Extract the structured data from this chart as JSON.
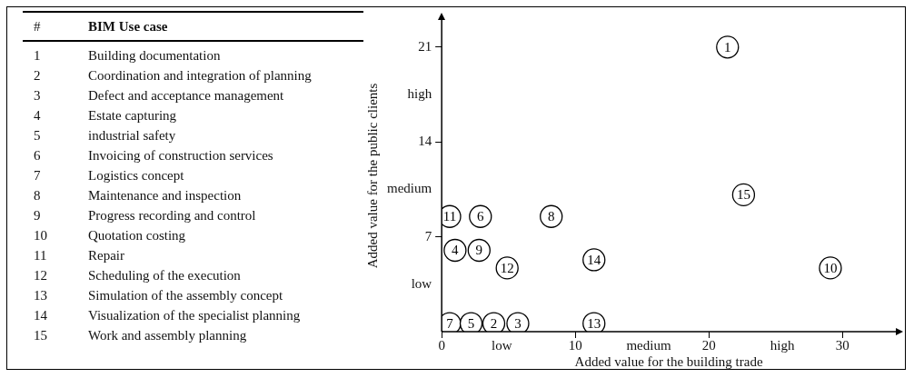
{
  "chart_data": {
    "type": "scatter",
    "xlabel": "Added value for the building trade",
    "ylabel": "Added value for the public clients",
    "series": [
      {
        "name": "1",
        "color": "#000000",
        "x": [
          21.4
        ],
        "values": [
          21
        ]
      },
      {
        "name": "2",
        "color": "#000000",
        "x": [
          3.9
        ],
        "values": [
          0.6
        ]
      },
      {
        "name": "3",
        "color": "#000000",
        "x": [
          5.7
        ],
        "values": [
          0.6
        ]
      },
      {
        "name": "4",
        "color": "#000000",
        "x": [
          1.0
        ],
        "values": [
          6.0
        ]
      },
      {
        "name": "5",
        "color": "#000000",
        "x": [
          2.2
        ],
        "values": [
          0.6
        ]
      },
      {
        "name": "6",
        "color": "#000000",
        "x": [
          2.9
        ],
        "values": [
          8.5
        ]
      },
      {
        "name": "7",
        "color": "#000000",
        "x": [
          0.6
        ],
        "values": [
          0.6
        ]
      },
      {
        "name": "8",
        "color": "#000000",
        "x": [
          8.2
        ],
        "values": [
          8.5
        ]
      },
      {
        "name": "9",
        "color": "#000000",
        "x": [
          2.8
        ],
        "values": [
          6.0
        ]
      },
      {
        "name": "10",
        "color": "#000000",
        "x": [
          29.1
        ],
        "values": [
          4.7
        ]
      },
      {
        "name": "11",
        "color": "#000000",
        "x": [
          0.6
        ],
        "values": [
          8.5
        ]
      },
      {
        "name": "12",
        "color": "#000000",
        "x": [
          4.9
        ],
        "values": [
          4.7
        ]
      },
      {
        "name": "13",
        "color": "#000000",
        "x": [
          11.4
        ],
        "values": [
          0.6
        ]
      },
      {
        "name": "14",
        "color": "#000000",
        "x": [
          11.4
        ],
        "values": [
          5.3
        ]
      },
      {
        "name": "15",
        "color": "#000000",
        "x": [
          22.6
        ],
        "values": [
          10.1
        ]
      }
    ],
    "xlim": [
      0,
      34
    ],
    "ylim": [
      0,
      23
    ],
    "xticks": [
      0,
      {
        "value": 4.5,
        "label": "low"
      },
      10,
      {
        "value": 15.5,
        "label": "medium"
      },
      20,
      {
        "value": 25.5,
        "label": "high"
      },
      30
    ],
    "yticks": [
      {
        "value": 3.5,
        "label": "low"
      },
      7,
      {
        "value": 10.5,
        "label": "medium"
      },
      14,
      {
        "value": 17.5,
        "label": "high"
      },
      21
    ],
    "grid": false,
    "legend": false,
    "marker": "circle",
    "annotations": [
      "# BIM Use case",
      "1 Building documentation",
      "2 Coordination and integration of planning",
      "3 Defect and acceptance management",
      "4 Estate capturing",
      "5 industrial safety",
      "6 Invoicing of construction services",
      "7 Logistics concept",
      "8 Maintenance and inspection",
      "9 Progress recording and control",
      "10 Quotation costing",
      "11 Repair",
      "12 Scheduling of the execution",
      "13 Simulation of the assembly concept",
      "14 Visualization of the specialist planning",
      "15 Work and assembly planning"
    ]
  }
}
